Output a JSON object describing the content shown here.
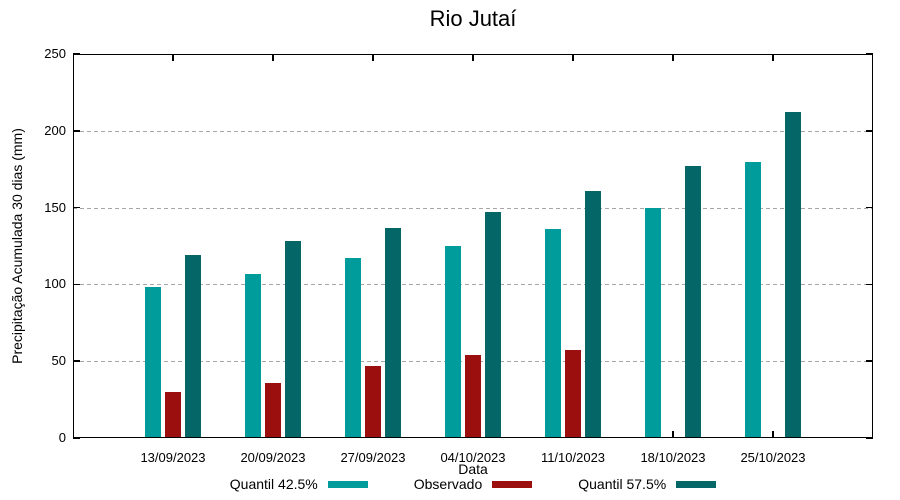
{
  "chart_data": {
    "type": "bar",
    "title": "Rio Jutaí",
    "xlabel": "Data",
    "ylabel": "Precipitação Acumulada 30 dias (mm)",
    "categories": [
      "13/09/2023",
      "20/09/2023",
      "27/09/2023",
      "04/10/2023",
      "11/10/2023",
      "18/10/2023",
      "25/10/2023"
    ],
    "series": [
      {
        "name": "Quantil 42.5%",
        "color": "#009B9B",
        "values": [
          98,
          107,
          117,
          125,
          136,
          150,
          180
        ]
      },
      {
        "name": "Observado",
        "color": "#9B0F0F",
        "values": [
          30,
          36,
          47,
          54,
          57,
          null,
          null
        ]
      },
      {
        "name": "Quantil 57.5%",
        "color": "#046667",
        "values": [
          119,
          128,
          137,
          147,
          161,
          177,
          212
        ]
      }
    ],
    "ylim": [
      0,
      250
    ],
    "yticks": [
      0,
      50,
      100,
      150,
      200,
      250
    ],
    "grid": "horizontal-dashed",
    "legend_position": "bottom-center",
    "axis_color": "#000000",
    "grid_color": "#a6a6a6"
  }
}
